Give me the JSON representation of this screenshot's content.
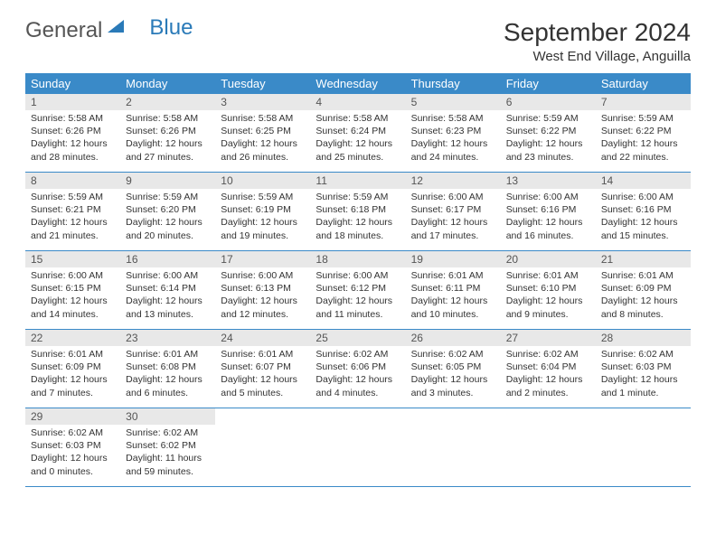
{
  "brand": {
    "part1": "General",
    "part2": "Blue"
  },
  "title": "September 2024",
  "location": "West End Village, Anguilla",
  "colors": {
    "header_bg": "#3a8ac8",
    "header_text": "#ffffff",
    "daynum_bg": "#e8e8e8",
    "daynum_text": "#555555",
    "body_text": "#333333",
    "rule": "#3a8ac8",
    "logo_gray": "#555555",
    "logo_blue": "#2a7ab8"
  },
  "fonts": {
    "title_size": 28,
    "location_size": 15,
    "dayhead_size": 13,
    "daynum_size": 12,
    "body_size": 10.5
  },
  "dayHeaders": [
    "Sunday",
    "Monday",
    "Tuesday",
    "Wednesday",
    "Thursday",
    "Friday",
    "Saturday"
  ],
  "weeks": [
    [
      {
        "n": "1",
        "sr": "5:58 AM",
        "ss": "6:26 PM",
        "dl": "12 hours and 28 minutes."
      },
      {
        "n": "2",
        "sr": "5:58 AM",
        "ss": "6:26 PM",
        "dl": "12 hours and 27 minutes."
      },
      {
        "n": "3",
        "sr": "5:58 AM",
        "ss": "6:25 PM",
        "dl": "12 hours and 26 minutes."
      },
      {
        "n": "4",
        "sr": "5:58 AM",
        "ss": "6:24 PM",
        "dl": "12 hours and 25 minutes."
      },
      {
        "n": "5",
        "sr": "5:58 AM",
        "ss": "6:23 PM",
        "dl": "12 hours and 24 minutes."
      },
      {
        "n": "6",
        "sr": "5:59 AM",
        "ss": "6:22 PM",
        "dl": "12 hours and 23 minutes."
      },
      {
        "n": "7",
        "sr": "5:59 AM",
        "ss": "6:22 PM",
        "dl": "12 hours and 22 minutes."
      }
    ],
    [
      {
        "n": "8",
        "sr": "5:59 AM",
        "ss": "6:21 PM",
        "dl": "12 hours and 21 minutes."
      },
      {
        "n": "9",
        "sr": "5:59 AM",
        "ss": "6:20 PM",
        "dl": "12 hours and 20 minutes."
      },
      {
        "n": "10",
        "sr": "5:59 AM",
        "ss": "6:19 PM",
        "dl": "12 hours and 19 minutes."
      },
      {
        "n": "11",
        "sr": "5:59 AM",
        "ss": "6:18 PM",
        "dl": "12 hours and 18 minutes."
      },
      {
        "n": "12",
        "sr": "6:00 AM",
        "ss": "6:17 PM",
        "dl": "12 hours and 17 minutes."
      },
      {
        "n": "13",
        "sr": "6:00 AM",
        "ss": "6:16 PM",
        "dl": "12 hours and 16 minutes."
      },
      {
        "n": "14",
        "sr": "6:00 AM",
        "ss": "6:16 PM",
        "dl": "12 hours and 15 minutes."
      }
    ],
    [
      {
        "n": "15",
        "sr": "6:00 AM",
        "ss": "6:15 PM",
        "dl": "12 hours and 14 minutes."
      },
      {
        "n": "16",
        "sr": "6:00 AM",
        "ss": "6:14 PM",
        "dl": "12 hours and 13 minutes."
      },
      {
        "n": "17",
        "sr": "6:00 AM",
        "ss": "6:13 PM",
        "dl": "12 hours and 12 minutes."
      },
      {
        "n": "18",
        "sr": "6:00 AM",
        "ss": "6:12 PM",
        "dl": "12 hours and 11 minutes."
      },
      {
        "n": "19",
        "sr": "6:01 AM",
        "ss": "6:11 PM",
        "dl": "12 hours and 10 minutes."
      },
      {
        "n": "20",
        "sr": "6:01 AM",
        "ss": "6:10 PM",
        "dl": "12 hours and 9 minutes."
      },
      {
        "n": "21",
        "sr": "6:01 AM",
        "ss": "6:09 PM",
        "dl": "12 hours and 8 minutes."
      }
    ],
    [
      {
        "n": "22",
        "sr": "6:01 AM",
        "ss": "6:09 PM",
        "dl": "12 hours and 7 minutes."
      },
      {
        "n": "23",
        "sr": "6:01 AM",
        "ss": "6:08 PM",
        "dl": "12 hours and 6 minutes."
      },
      {
        "n": "24",
        "sr": "6:01 AM",
        "ss": "6:07 PM",
        "dl": "12 hours and 5 minutes."
      },
      {
        "n": "25",
        "sr": "6:02 AM",
        "ss": "6:06 PM",
        "dl": "12 hours and 4 minutes."
      },
      {
        "n": "26",
        "sr": "6:02 AM",
        "ss": "6:05 PM",
        "dl": "12 hours and 3 minutes."
      },
      {
        "n": "27",
        "sr": "6:02 AM",
        "ss": "6:04 PM",
        "dl": "12 hours and 2 minutes."
      },
      {
        "n": "28",
        "sr": "6:02 AM",
        "ss": "6:03 PM",
        "dl": "12 hours and 1 minute."
      }
    ],
    [
      {
        "n": "29",
        "sr": "6:02 AM",
        "ss": "6:03 PM",
        "dl": "12 hours and 0 minutes."
      },
      {
        "n": "30",
        "sr": "6:02 AM",
        "ss": "6:02 PM",
        "dl": "11 hours and 59 minutes."
      },
      null,
      null,
      null,
      null,
      null
    ]
  ],
  "labels": {
    "sunrise": "Sunrise:",
    "sunset": "Sunset:",
    "daylight": "Daylight:"
  }
}
